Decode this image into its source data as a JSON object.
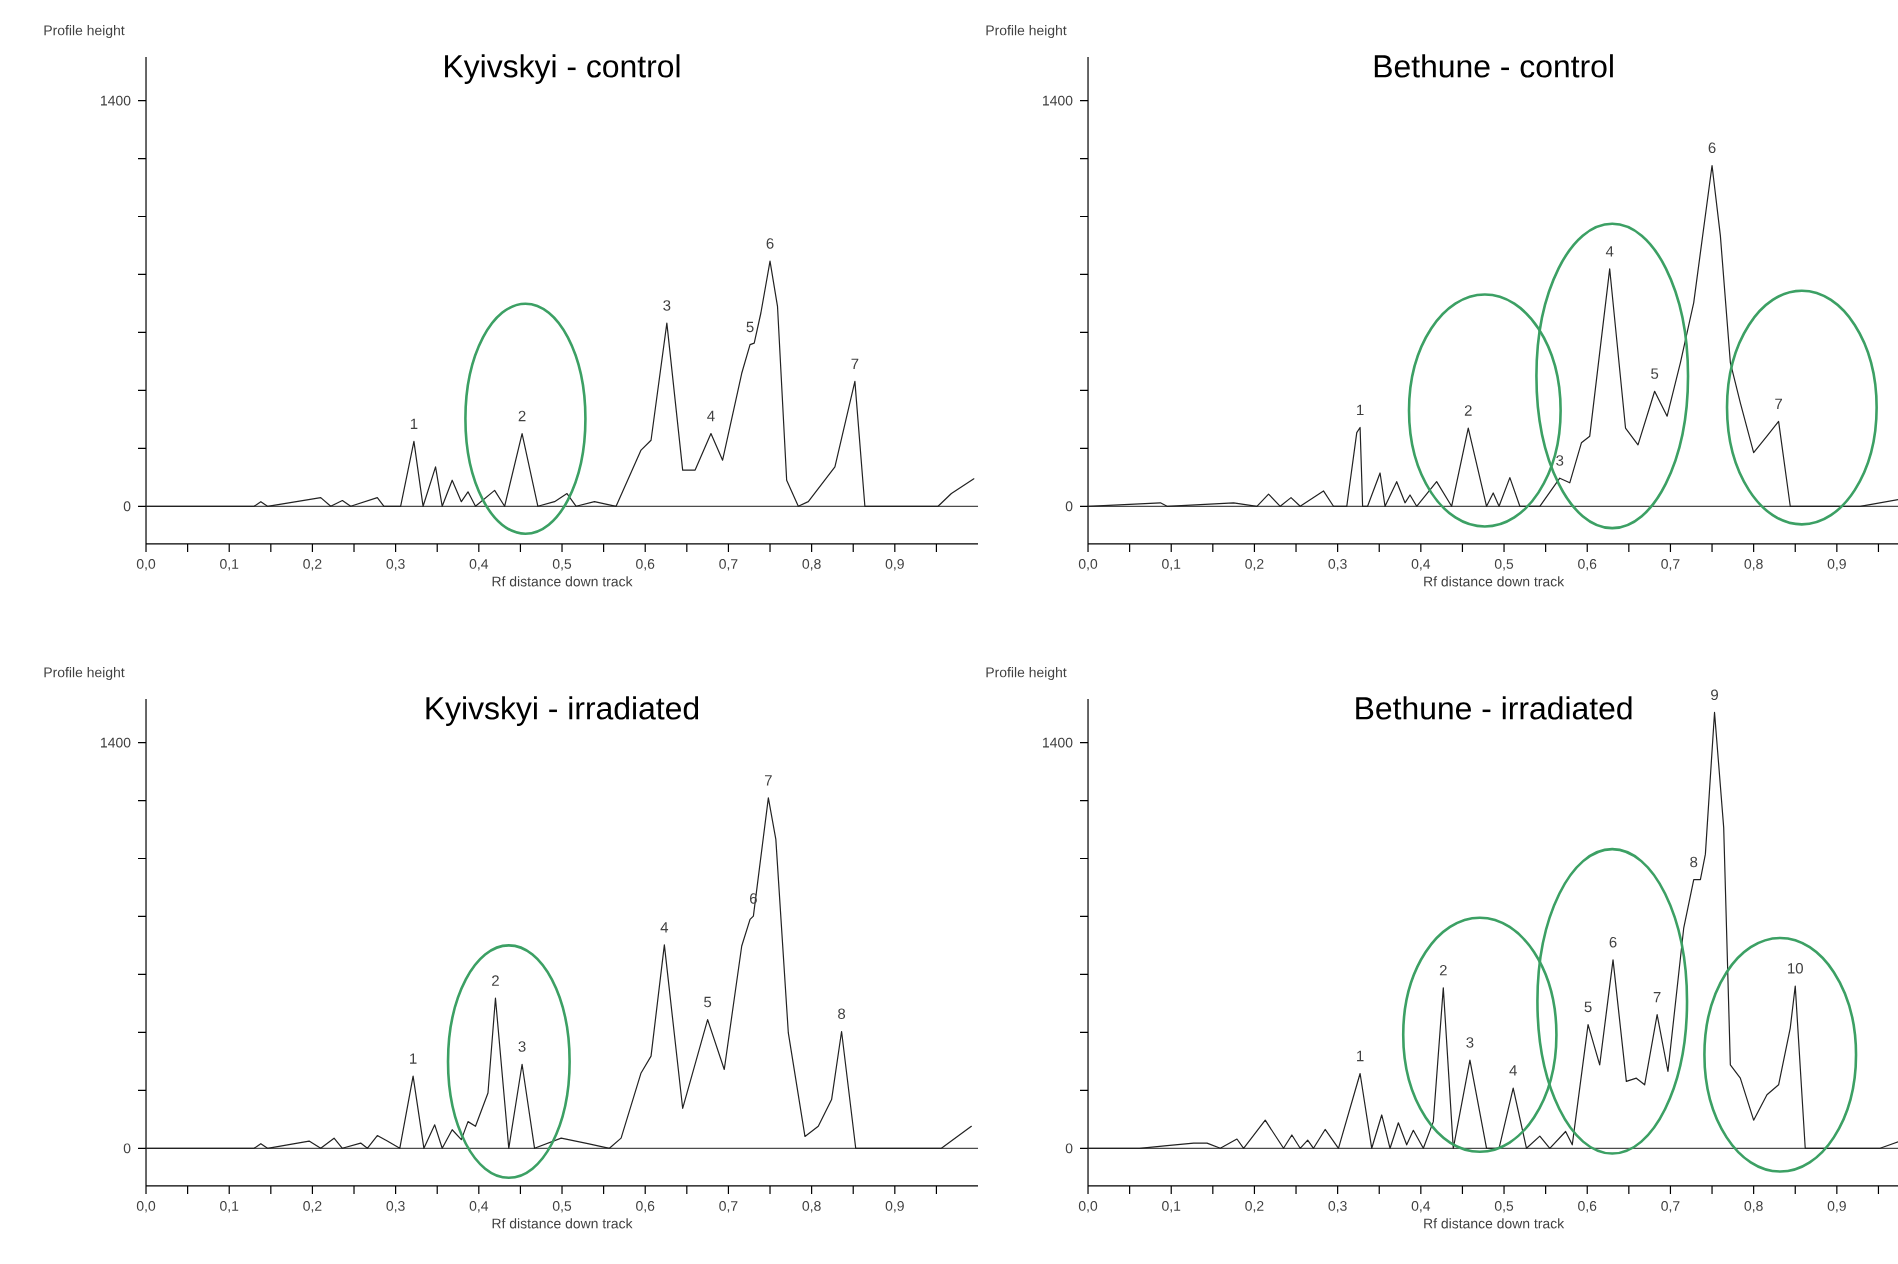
{
  "chart_data": [
    {
      "type": "line",
      "title": "Kyivskyi - control",
      "xlabel": "Rf distance down track",
      "ylabel": "Profile height",
      "color": "#222222",
      "x": [
        0,
        0.13,
        0.138,
        0.146,
        0.21,
        0.222,
        0.236,
        0.246,
        0.278,
        0.286,
        0.306,
        0.322,
        0.333,
        0.348,
        0.356,
        0.368,
        0.379,
        0.387,
        0.396,
        0.419,
        0.431,
        0.452,
        0.471,
        0.491,
        0.506,
        0.517,
        0.539,
        0.565,
        0.595,
        0.607,
        0.626,
        0.645,
        0.66,
        0.679,
        0.693,
        0.716,
        0.726,
        0.731,
        0.739,
        0.75,
        0.759,
        0.77,
        0.784,
        0.796,
        0.828,
        0.852,
        0.864,
        0.952,
        0.968,
        0.995
      ],
      "values": [
        0,
        0,
        16,
        0,
        30,
        0,
        20,
        0,
        30,
        0,
        0,
        224,
        0,
        136,
        0,
        90,
        16,
        50,
        0,
        55,
        0,
        251,
        0,
        16,
        44,
        0,
        16,
        0,
        194,
        228,
        632,
        125,
        125,
        251,
        159,
        459,
        558,
        563,
        667,
        846,
        690,
        90,
        0,
        16,
        136,
        431,
        0,
        0,
        44,
        95
      ],
      "xlim": [
        0,
        1.0
      ],
      "ylim": [
        -130,
        1550
      ],
      "xticks": [
        {
          "value": 0,
          "label": "0,0"
        },
        {
          "value": 0.05,
          "label": null
        },
        {
          "value": 0.1,
          "label": "0,1"
        },
        {
          "value": 0.15,
          "label": null
        },
        {
          "value": 0.2,
          "label": "0,2"
        },
        {
          "value": 0.25,
          "label": null
        },
        {
          "value": 0.3,
          "label": "0,3"
        },
        {
          "value": 0.35,
          "label": null
        },
        {
          "value": 0.4,
          "label": "0,4"
        },
        {
          "value": 0.45,
          "label": null
        },
        {
          "value": 0.5,
          "label": "0,5"
        },
        {
          "value": 0.55,
          "label": null
        },
        {
          "value": 0.6,
          "label": "0,6"
        },
        {
          "value": 0.65,
          "label": null
        },
        {
          "value": 0.7,
          "label": "0,7"
        },
        {
          "value": 0.75,
          "label": null
        },
        {
          "value": 0.8,
          "label": "0,8"
        },
        {
          "value": 0.85,
          "label": null
        },
        {
          "value": 0.9,
          "label": "0,9"
        },
        {
          "value": 0.95,
          "label": null
        }
      ],
      "yticks": [
        0,
        {
          "value": 200,
          "label": null
        },
        {
          "value": 400,
          "label": null
        },
        {
          "value": 600,
          "label": null
        },
        {
          "value": 800,
          "label": null
        },
        {
          "value": 1000,
          "label": null
        },
        {
          "value": 1200,
          "label": null
        },
        1400
      ],
      "ref_lines": [
        {
          "axis": "y",
          "value": 0
        }
      ],
      "annotations": [
        {
          "text": "1",
          "x": 0.322,
          "y": 224
        },
        {
          "text": "2",
          "x": 0.452,
          "y": 251
        },
        {
          "text": "3",
          "x": 0.626,
          "y": 632
        },
        {
          "text": "4",
          "x": 0.679,
          "y": 251
        },
        {
          "text": "5",
          "x": 0.726,
          "y": 558
        },
        {
          "text": "6",
          "x": 0.75,
          "y": 846
        },
        {
          "text": "7",
          "x": 0.852,
          "y": 431
        }
      ]
    },
    {
      "type": "line",
      "title": "Bethune - control",
      "xlabel": "Rf distance down track",
      "ylabel": "Profile height",
      "color": "#222222",
      "x": [
        0,
        0.087,
        0.095,
        0.175,
        0.203,
        0.217,
        0.231,
        0.244,
        0.255,
        0.283,
        0.295,
        0.311,
        0.323,
        0.327,
        0.33,
        0.336,
        0.351,
        0.357,
        0.371,
        0.381,
        0.387,
        0.395,
        0.419,
        0.437,
        0.457,
        0.479,
        0.487,
        0.494,
        0.507,
        0.519,
        0.543,
        0.567,
        0.579,
        0.593,
        0.603,
        0.627,
        0.646,
        0.661,
        0.681,
        0.696,
        0.712,
        0.728,
        0.75,
        0.76,
        0.772,
        0.784,
        0.8,
        0.816,
        0.83,
        0.844,
        0.928,
        0.974
      ],
      "values": [
        0,
        12,
        0,
        12,
        0,
        42,
        0,
        30,
        0,
        53,
        0,
        0,
        254,
        272,
        0,
        0,
        115,
        0,
        85,
        12,
        39,
        0,
        85,
        0,
        270,
        0,
        46,
        0,
        99,
        0,
        0,
        97,
        81,
        219,
        242,
        819,
        270,
        212,
        397,
        311,
        496,
        703,
        1176,
        934,
        496,
        357,
        185,
        242,
        293,
        0,
        0,
        23
      ],
      "xlim": [
        0,
        0.975
      ],
      "ylim": [
        -130,
        1550
      ],
      "xticks": [
        {
          "value": 0,
          "label": "0,0"
        },
        {
          "value": 0.05,
          "label": null
        },
        {
          "value": 0.1,
          "label": "0,1"
        },
        {
          "value": 0.15,
          "label": null
        },
        {
          "value": 0.2,
          "label": "0,2"
        },
        {
          "value": 0.25,
          "label": null
        },
        {
          "value": 0.3,
          "label": "0,3"
        },
        {
          "value": 0.35,
          "label": null
        },
        {
          "value": 0.4,
          "label": "0,4"
        },
        {
          "value": 0.45,
          "label": null
        },
        {
          "value": 0.5,
          "label": "0,5"
        },
        {
          "value": 0.55,
          "label": null
        },
        {
          "value": 0.6,
          "label": "0,6"
        },
        {
          "value": 0.65,
          "label": null
        },
        {
          "value": 0.7,
          "label": "0,7"
        },
        {
          "value": 0.75,
          "label": null
        },
        {
          "value": 0.8,
          "label": "0,8"
        },
        {
          "value": 0.85,
          "label": null
        },
        {
          "value": 0.9,
          "label": "0,9"
        },
        {
          "value": 0.95,
          "label": null
        }
      ],
      "yticks": [
        0,
        {
          "value": 200,
          "label": null
        },
        {
          "value": 400,
          "label": null
        },
        {
          "value": 600,
          "label": null
        },
        {
          "value": 800,
          "label": null
        },
        {
          "value": 1000,
          "label": null
        },
        {
          "value": 1200,
          "label": null
        },
        1400
      ],
      "ref_lines": [
        {
          "axis": "y",
          "value": 0
        }
      ],
      "annotations": [
        {
          "text": "1",
          "x": 0.327,
          "y": 272
        },
        {
          "text": "2",
          "x": 0.457,
          "y": 270
        },
        {
          "text": "3",
          "x": 0.567,
          "y": 97
        },
        {
          "text": "4",
          "x": 0.627,
          "y": 819
        },
        {
          "text": "5",
          "x": 0.681,
          "y": 397
        },
        {
          "text": "6",
          "x": 0.75,
          "y": 1176
        },
        {
          "text": "7",
          "x": 0.83,
          "y": 293
        }
      ]
    },
    {
      "type": "line",
      "title": "Kyivskyi - irradiated",
      "xlabel": "Rf distance down track",
      "ylabel": "Profile height",
      "color": "#222222",
      "x": [
        0,
        0.13,
        0.138,
        0.146,
        0.196,
        0.21,
        0.226,
        0.236,
        0.258,
        0.266,
        0.278,
        0.29,
        0.305,
        0.321,
        0.334,
        0.347,
        0.356,
        0.368,
        0.379,
        0.387,
        0.396,
        0.411,
        0.42,
        0.436,
        0.452,
        0.467,
        0.499,
        0.531,
        0.557,
        0.571,
        0.595,
        0.607,
        0.623,
        0.645,
        0.675,
        0.695,
        0.716,
        0.726,
        0.73,
        0.748,
        0.757,
        0.772,
        0.792,
        0.808,
        0.824,
        0.836,
        0.853,
        0.956,
        0.992
      ],
      "values": [
        0,
        0,
        16,
        0,
        25,
        0,
        35,
        0,
        18,
        0,
        44,
        25,
        0,
        249,
        0,
        81,
        0,
        64,
        30,
        92,
        76,
        191,
        518,
        0,
        290,
        0,
        35,
        16,
        0,
        35,
        260,
        318,
        702,
        138,
        444,
        272,
        698,
        790,
        801,
        1209,
        1066,
        398,
        41,
        76,
        168,
        403,
        0,
        0,
        76
      ],
      "xlim": [
        0,
        1.0
      ],
      "ylim": [
        -130,
        1550
      ],
      "xticks": [
        {
          "value": 0,
          "label": "0,0"
        },
        {
          "value": 0.05,
          "label": null
        },
        {
          "value": 0.1,
          "label": "0,1"
        },
        {
          "value": 0.15,
          "label": null
        },
        {
          "value": 0.2,
          "label": "0,2"
        },
        {
          "value": 0.25,
          "label": null
        },
        {
          "value": 0.3,
          "label": "0,3"
        },
        {
          "value": 0.35,
          "label": null
        },
        {
          "value": 0.4,
          "label": "0,4"
        },
        {
          "value": 0.45,
          "label": null
        },
        {
          "value": 0.5,
          "label": "0,5"
        },
        {
          "value": 0.55,
          "label": null
        },
        {
          "value": 0.6,
          "label": "0,6"
        },
        {
          "value": 0.65,
          "label": null
        },
        {
          "value": 0.7,
          "label": "0,7"
        },
        {
          "value": 0.75,
          "label": null
        },
        {
          "value": 0.8,
          "label": "0,8"
        },
        {
          "value": 0.85,
          "label": null
        },
        {
          "value": 0.9,
          "label": "0,9"
        },
        {
          "value": 0.95,
          "label": null
        }
      ],
      "yticks": [
        0,
        {
          "value": 200,
          "label": null
        },
        {
          "value": 400,
          "label": null
        },
        {
          "value": 600,
          "label": null
        },
        {
          "value": 800,
          "label": null
        },
        {
          "value": 1000,
          "label": null
        },
        {
          "value": 1200,
          "label": null
        },
        1400
      ],
      "ref_lines": [
        {
          "axis": "y",
          "value": 0
        }
      ],
      "annotations": [
        {
          "text": "1",
          "x": 0.321,
          "y": 249
        },
        {
          "text": "2",
          "x": 0.42,
          "y": 518
        },
        {
          "text": "3",
          "x": 0.452,
          "y": 290
        },
        {
          "text": "4",
          "x": 0.623,
          "y": 702
        },
        {
          "text": "5",
          "x": 0.675,
          "y": 444
        },
        {
          "text": "6",
          "x": 0.73,
          "y": 801
        },
        {
          "text": "7",
          "x": 0.748,
          "y": 1209
        },
        {
          "text": "8",
          "x": 0.836,
          "y": 403
        }
      ]
    },
    {
      "type": "line",
      "title": "Bethune - irradiated",
      "xlabel": "Rf distance down track",
      "ylabel": "Profile height",
      "color": "#222222",
      "x": [
        0,
        0.062,
        0.095,
        0.127,
        0.143,
        0.159,
        0.179,
        0.187,
        0.213,
        0.235,
        0.245,
        0.255,
        0.264,
        0.271,
        0.285,
        0.301,
        0.327,
        0.341,
        0.353,
        0.363,
        0.373,
        0.383,
        0.391,
        0.403,
        0.415,
        0.427,
        0.439,
        0.459,
        0.479,
        0.494,
        0.511,
        0.527,
        0.543,
        0.555,
        0.574,
        0.582,
        0.601,
        0.615,
        0.631,
        0.647,
        0.659,
        0.669,
        0.684,
        0.697,
        0.716,
        0.728,
        0.736,
        0.742,
        0.753,
        0.764,
        0.772,
        0.784,
        0.8,
        0.816,
        0.83,
        0.844,
        0.85,
        0.862,
        0.952,
        0.974
      ],
      "values": [
        0,
        0,
        9,
        18,
        18,
        0,
        32,
        0,
        97,
        0,
        46,
        0,
        28,
        0,
        65,
        0,
        258,
        0,
        115,
        0,
        88,
        12,
        62,
        0,
        92,
        554,
        0,
        304,
        0,
        0,
        208,
        0,
        42,
        0,
        58,
        12,
        427,
        288,
        650,
        231,
        242,
        219,
        461,
        265,
        761,
        927,
        927,
        1015,
        1504,
        1107,
        288,
        242,
        97,
        185,
        219,
        415,
        560,
        0,
        0,
        23
      ],
      "xlim": [
        0,
        0.975
      ],
      "ylim": [
        -130,
        1550
      ],
      "xticks": [
        {
          "value": 0,
          "label": "0,0"
        },
        {
          "value": 0.05,
          "label": null
        },
        {
          "value": 0.1,
          "label": "0,1"
        },
        {
          "value": 0.15,
          "label": null
        },
        {
          "value": 0.2,
          "label": "0,2"
        },
        {
          "value": 0.25,
          "label": null
        },
        {
          "value": 0.3,
          "label": "0,3"
        },
        {
          "value": 0.35,
          "label": null
        },
        {
          "value": 0.4,
          "label": "0,4"
        },
        {
          "value": 0.45,
          "label": null
        },
        {
          "value": 0.5,
          "label": "0,5"
        },
        {
          "value": 0.55,
          "label": null
        },
        {
          "value": 0.6,
          "label": "0,6"
        },
        {
          "value": 0.65,
          "label": null
        },
        {
          "value": 0.7,
          "label": "0,7"
        },
        {
          "value": 0.75,
          "label": null
        },
        {
          "value": 0.8,
          "label": "0,8"
        },
        {
          "value": 0.85,
          "label": null
        },
        {
          "value": 0.9,
          "label": "0,9"
        },
        {
          "value": 0.95,
          "label": null
        }
      ],
      "yticks": [
        0,
        {
          "value": 200,
          "label": null
        },
        {
          "value": 400,
          "label": null
        },
        {
          "value": 600,
          "label": null
        },
        {
          "value": 800,
          "label": null
        },
        {
          "value": 1000,
          "label": null
        },
        {
          "value": 1200,
          "label": null
        },
        1400
      ],
      "ref_lines": [
        {
          "axis": "y",
          "value": 0
        }
      ],
      "annotations": [
        {
          "text": "1",
          "x": 0.327,
          "y": 258
        },
        {
          "text": "2",
          "x": 0.427,
          "y": 554
        },
        {
          "text": "3",
          "x": 0.459,
          "y": 304
        },
        {
          "text": "4",
          "x": 0.511,
          "y": 208
        },
        {
          "text": "5",
          "x": 0.601,
          "y": 427
        },
        {
          "text": "6",
          "x": 0.631,
          "y": 650
        },
        {
          "text": "7",
          "x": 0.684,
          "y": 461
        },
        {
          "text": "8",
          "x": 0.728,
          "y": 927
        },
        {
          "text": "9",
          "x": 0.753,
          "y": 1504
        },
        {
          "text": "10",
          "x": 0.85,
          "y": 560
        }
      ]
    }
  ]
}
